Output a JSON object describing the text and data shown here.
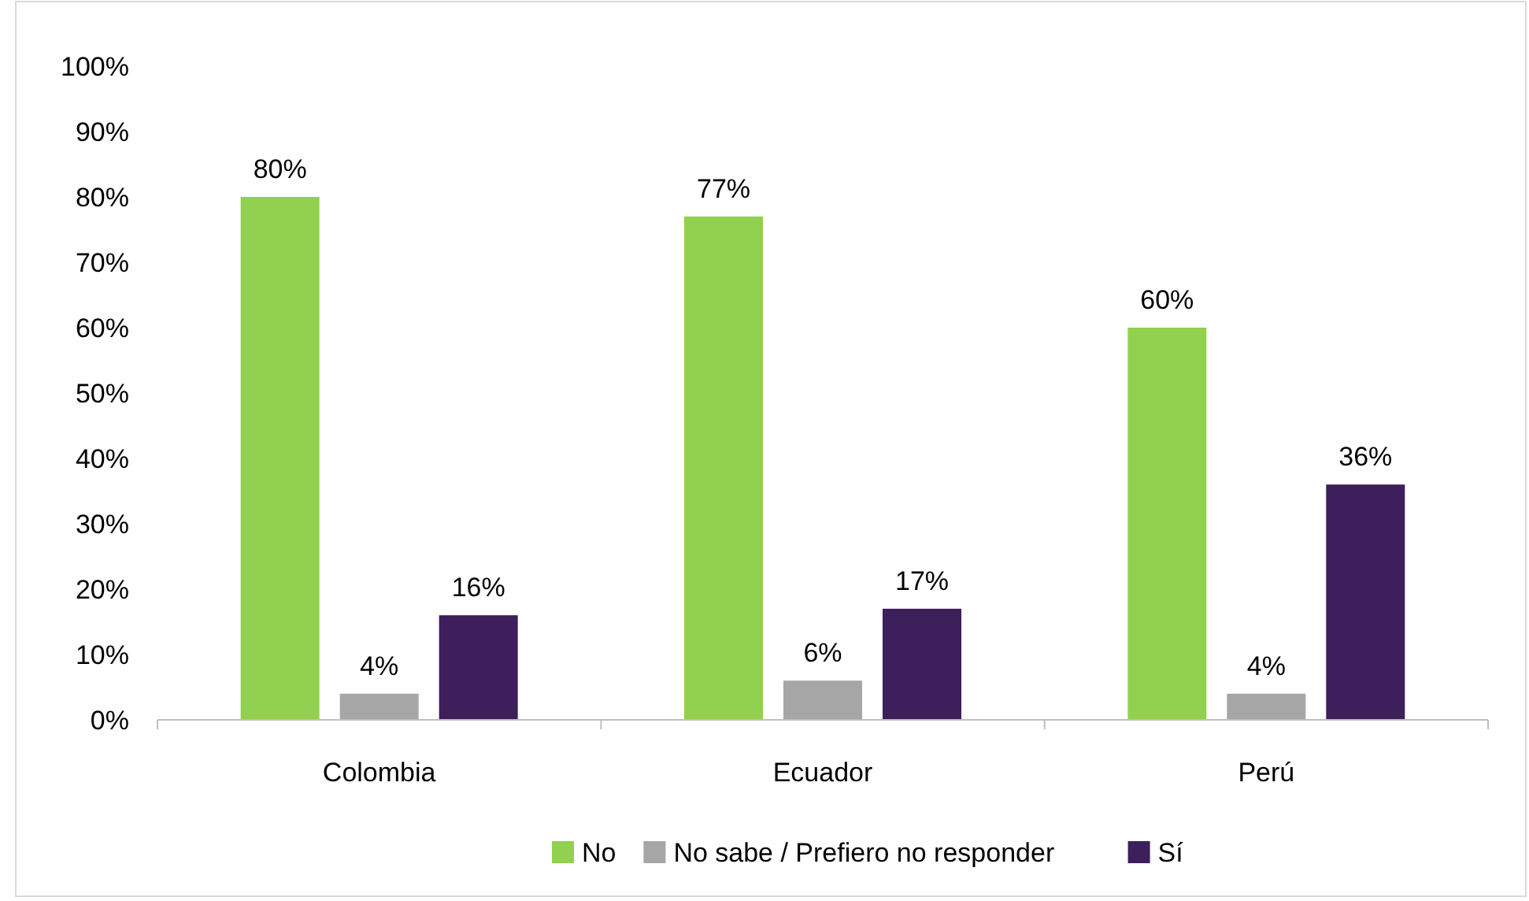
{
  "chart_data": {
    "type": "bar",
    "categories": [
      "Colombia",
      "Ecuador",
      "Perú"
    ],
    "series": [
      {
        "name": "No",
        "color": "#92d050",
        "values": [
          80,
          77,
          60
        ],
        "value_labels": [
          "80%",
          "77%",
          "60%"
        ]
      },
      {
        "name": "No sabe / Prefiero no responder",
        "color": "#a6a6a6",
        "values": [
          4,
          6,
          4
        ],
        "value_labels": [
          "4%",
          "6%",
          "4%"
        ]
      },
      {
        "name": "Sí",
        "color": "#3c1f5b",
        "values": [
          16,
          17,
          36
        ],
        "value_labels": [
          "16%",
          "17%",
          "36%"
        ]
      }
    ],
    "ylim": [
      0,
      100
    ],
    "yticks": [
      {
        "value": 0,
        "label": "0%"
      },
      {
        "value": 10,
        "label": "10%"
      },
      {
        "value": 20,
        "label": "20%"
      },
      {
        "value": 30,
        "label": "30%"
      },
      {
        "value": 40,
        "label": "40%"
      },
      {
        "value": 50,
        "label": "50%"
      },
      {
        "value": 60,
        "label": "60%"
      },
      {
        "value": 70,
        "label": "70%"
      },
      {
        "value": 80,
        "label": "80%"
      },
      {
        "value": 90,
        "label": "90%"
      },
      {
        "value": 100,
        "label": "100%"
      }
    ],
    "grid": false,
    "legend": "bottom"
  }
}
